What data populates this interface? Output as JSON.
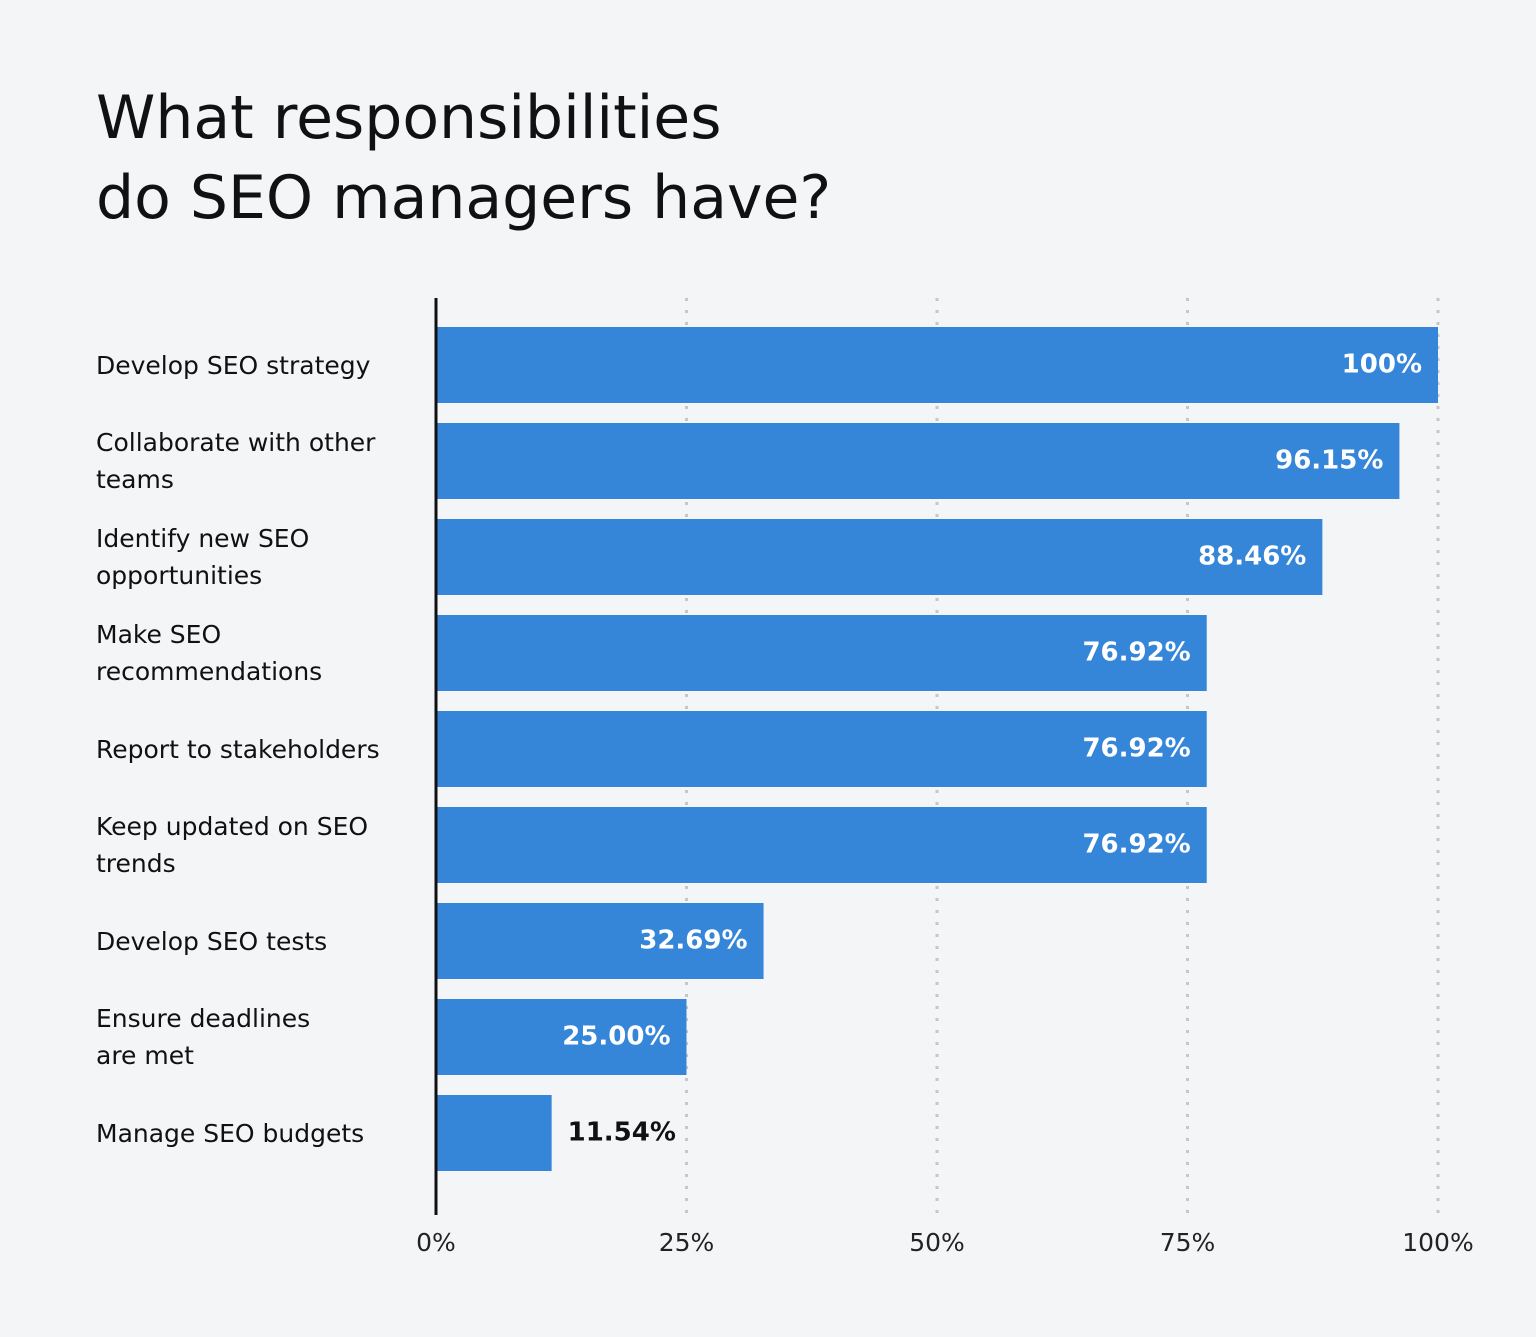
{
  "chart_data": {
    "type": "bar",
    "orientation": "horizontal",
    "title": [
      "What responsibilities",
      "do SEO managers have?"
    ],
    "categories": [
      "Develop SEO strategy",
      "Collaborate with other\nteams",
      "Identify new SEO\nopportunities",
      "Make SEO\nrecommendations",
      "Report to stakeholders",
      "Keep updated on SEO\ntrends",
      "Develop SEO tests",
      "Ensure deadlines\nare met",
      "Manage SEO budgets"
    ],
    "values": [
      100,
      96.15,
      88.46,
      76.92,
      76.92,
      76.92,
      32.69,
      25.0,
      11.54
    ],
    "value_labels": [
      "100%",
      "96.15%",
      "88.46%",
      "76.92%",
      "76.92%",
      "76.92%",
      "32.69%",
      "25.00%",
      "11.54%"
    ],
    "color": "#3586d8",
    "xlim": [
      0,
      100
    ],
    "xticks": [
      {
        "value": 0,
        "label": "0%"
      },
      {
        "value": 25,
        "label": "25%"
      },
      {
        "value": 50,
        "label": "50%"
      },
      {
        "value": 75,
        "label": "75%"
      },
      {
        "value": 100,
        "label": "100%"
      }
    ],
    "grid": true
  }
}
